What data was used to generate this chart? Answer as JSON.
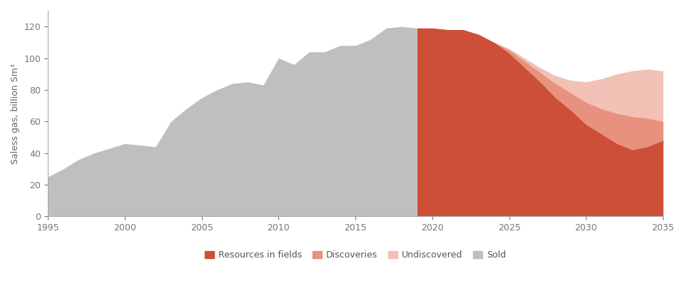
{
  "title": "",
  "ylabel": "Saless gas, billion Sm³",
  "xlabel": "",
  "ylim": [
    0,
    130
  ],
  "xlim": [
    1995,
    2035
  ],
  "yticks": [
    0,
    20,
    40,
    60,
    80,
    100,
    120
  ],
  "xticks": [
    1995,
    2000,
    2005,
    2010,
    2015,
    2020,
    2025,
    2030,
    2035
  ],
  "sold_years": [
    1995,
    1996,
    1997,
    1998,
    1999,
    2000,
    2001,
    2002,
    2003,
    2004,
    2005,
    2006,
    2007,
    2008,
    2009,
    2010,
    2011,
    2012,
    2013,
    2014,
    2015,
    2016,
    2017,
    2018,
    2019
  ],
  "sold_values": [
    25,
    30,
    36,
    40,
    43,
    46,
    45,
    44,
    60,
    68,
    75,
    80,
    84,
    85,
    83,
    100,
    96,
    104,
    104,
    108,
    108,
    112,
    119,
    120,
    119
  ],
  "resources_years": [
    2019,
    2020,
    2021,
    2022,
    2023,
    2024,
    2025,
    2026,
    2027,
    2028,
    2029,
    2030,
    2031,
    2032,
    2033,
    2034,
    2035
  ],
  "resources_values": [
    119,
    119,
    118,
    118,
    115,
    110,
    103,
    94,
    85,
    75,
    67,
    58,
    52,
    46,
    42,
    44,
    48
  ],
  "discoveries_top_years": [
    2019,
    2020,
    2021,
    2022,
    2023,
    2024,
    2025,
    2026,
    2027,
    2028,
    2029,
    2030,
    2031,
    2032,
    2033,
    2034,
    2035
  ],
  "discoveries_top_values": [
    119,
    119,
    118,
    118,
    115,
    110,
    105,
    98,
    91,
    84,
    78,
    72,
    68,
    65,
    63,
    62,
    60
  ],
  "undiscovered_top_years": [
    2019,
    2020,
    2021,
    2022,
    2023,
    2024,
    2025,
    2026,
    2027,
    2028,
    2029,
    2030,
    2031,
    2032,
    2033,
    2034,
    2035
  ],
  "undiscovered_top_values": [
    119,
    119,
    118,
    118,
    115,
    110,
    106,
    100,
    94,
    89,
    86,
    85,
    87,
    90,
    92,
    93,
    92
  ],
  "color_sold": "#c0bfbf",
  "color_resources": "#cd4f38",
  "color_discoveries": "#e8917f",
  "color_undiscovered": "#f2c0b5",
  "legend_labels": [
    "Resources in fields",
    "Discoveries",
    "Undiscovered",
    "Sold"
  ],
  "legend_colors": [
    "#cd4f38",
    "#e8917f",
    "#f2c0b5",
    "#c0bfbf"
  ]
}
